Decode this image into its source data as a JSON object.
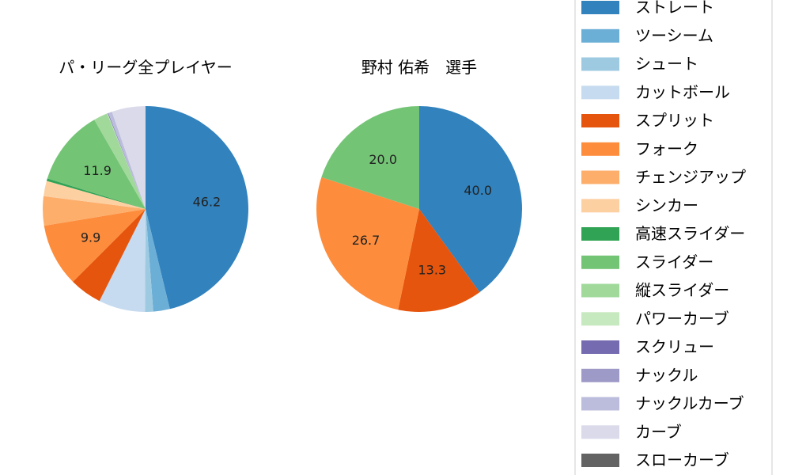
{
  "legend": {
    "items": [
      {
        "label": "ストレート",
        "color": "#3182bd"
      },
      {
        "label": "ツーシーム",
        "color": "#6baed6"
      },
      {
        "label": "シュート",
        "color": "#9ecae1"
      },
      {
        "label": "カットボール",
        "color": "#c6dbef"
      },
      {
        "label": "スプリット",
        "color": "#e6550d"
      },
      {
        "label": "フォーク",
        "color": "#fd8d3c"
      },
      {
        "label": "チェンジアップ",
        "color": "#fdae6b"
      },
      {
        "label": "シンカー",
        "color": "#fdd0a2"
      },
      {
        "label": "高速スライダー",
        "color": "#31a354"
      },
      {
        "label": "スライダー",
        "color": "#74c476"
      },
      {
        "label": "縦スライダー",
        "color": "#a1d99b"
      },
      {
        "label": "パワーカーブ",
        "color": "#c7e9c0"
      },
      {
        "label": "スクリュー",
        "color": "#756bb1"
      },
      {
        "label": "ナックル",
        "color": "#9e9ac8"
      },
      {
        "label": "ナックルカーブ",
        "color": "#bcbddc"
      },
      {
        "label": "カーブ",
        "color": "#dadaeb"
      },
      {
        "label": "スローカーブ",
        "color": "#636363"
      }
    ]
  },
  "chart_data": [
    {
      "type": "pie",
      "title": "パ・リーグ全プレイヤー",
      "categories": [
        "ストレート",
        "ツーシーム",
        "シュート",
        "カットボール",
        "スプリット",
        "フォーク",
        "チェンジアップ",
        "シンカー",
        "高速スライダー",
        "スライダー",
        "縦スライダー",
        "パワーカーブ",
        "スクリュー",
        "ナックル",
        "ナックルカーブ",
        "カーブ",
        "スローカーブ"
      ],
      "values": [
        46.2,
        2.6,
        1.3,
        7.3,
        5.1,
        9.9,
        4.6,
        2.4,
        0.4,
        11.9,
        2.2,
        0.1,
        0.1,
        0.0,
        0.6,
        5.3,
        0.0
      ],
      "data_labels": [
        "46.2",
        "",
        "",
        "",
        "",
        "9.9",
        "",
        "",
        "",
        "11.9",
        "",
        "",
        "",
        "",
        "",
        "",
        ""
      ],
      "start_angle": 90,
      "direction": "clockwise"
    },
    {
      "type": "pie",
      "title": "野村 佑希　選手",
      "categories": [
        "ストレート",
        "スプリット",
        "フォーク",
        "スライダー"
      ],
      "values": [
        40.0,
        13.3,
        26.7,
        20.0
      ],
      "data_labels": [
        "40.0",
        "13.3",
        "26.7",
        "20.0"
      ],
      "start_angle": 90,
      "direction": "clockwise"
    }
  ]
}
